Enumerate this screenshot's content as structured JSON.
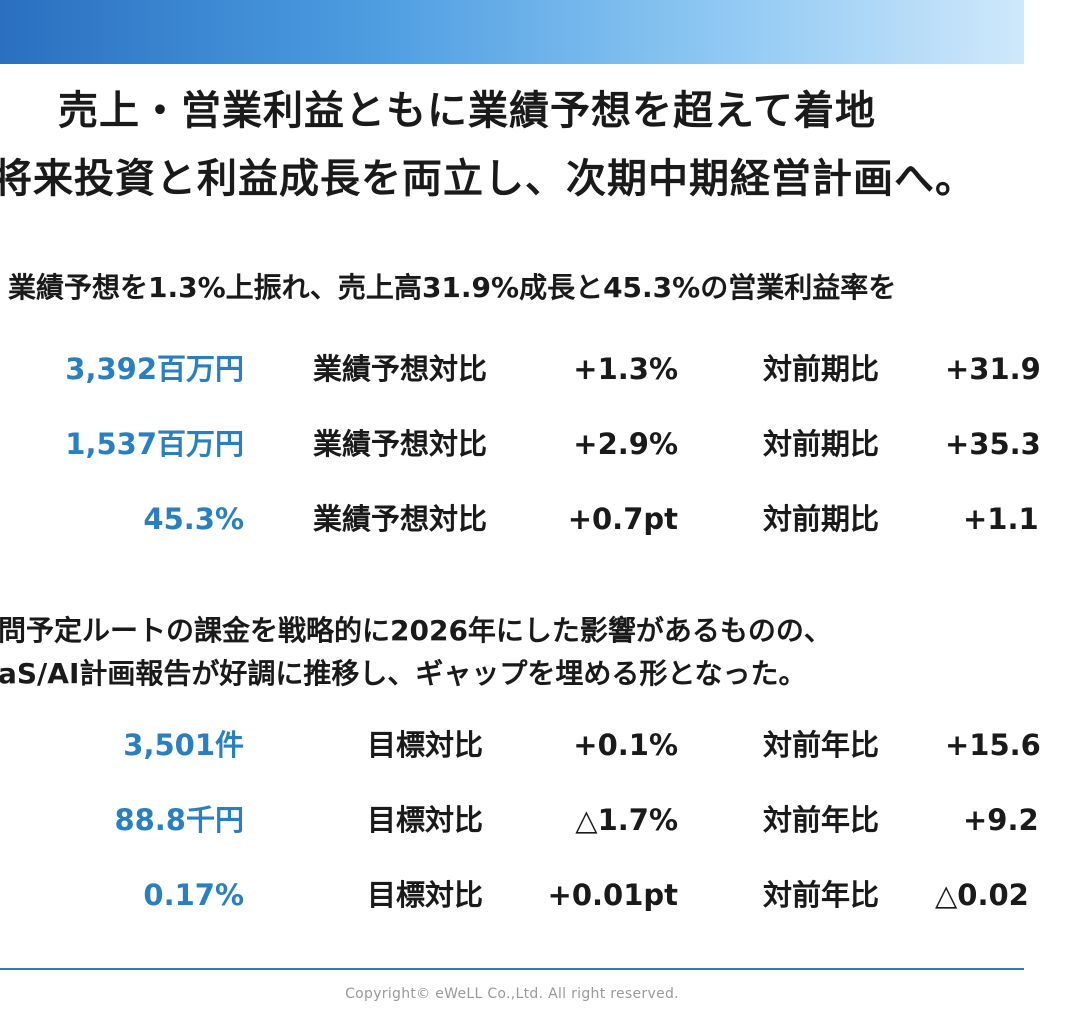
{
  "headline": {
    "line1": "売上・営業利益ともに業績予想を超えて着地",
    "line2": "将来投資と利益成長を両立し、次期中期経営計画へ。"
  },
  "section1": {
    "lead": "業績予想を1.3%上振れ、売上高31.9%成長と45.3%の営業利益率を",
    "rows": [
      {
        "value": "3,392百万円",
        "cmp1": "業績予想対比",
        "diff1": "+1.3%",
        "cmp2": "対前期比",
        "diff2": "+31.9"
      },
      {
        "value": "1,537百万円",
        "cmp1": "業績予想対比",
        "diff1": "+2.9%",
        "cmp2": "対前期比",
        "diff2": "+35.3"
      },
      {
        "value": "45.3%",
        "cmp1": "業績予想対比",
        "diff1": "+0.7pt",
        "cmp2": "対前期比",
        "diff2": "+1.1"
      }
    ]
  },
  "section2": {
    "note_line1": "問予定ルートの課金を戦略的に2026年にした影響があるものの、",
    "note_line2": "aS/AI計画報告が好調に推移し、ギャップを埋める形となった。",
    "rows": [
      {
        "value": "3,501件",
        "cmp1": "目標対比",
        "diff1": "+0.1%",
        "cmp2": "対前年比",
        "diff2": "+15.6"
      },
      {
        "value": "88.8千円",
        "cmp1": "目標対比",
        "diff1": "△1.7%",
        "cmp2": "対前年比",
        "diff2": "+9.2"
      },
      {
        "value": "0.17%",
        "cmp1": "目標対比",
        "diff1": "+0.01pt",
        "cmp2": "対前年比",
        "diff2": "△0.02"
      }
    ]
  },
  "footer": {
    "copyright": "Copyright© eWeLL Co.,Ltd. All right reserved."
  },
  "colors": {
    "accent": "#2a7fc1",
    "band_start": "#2a6fc0",
    "band_end": "#cfe8fb"
  }
}
